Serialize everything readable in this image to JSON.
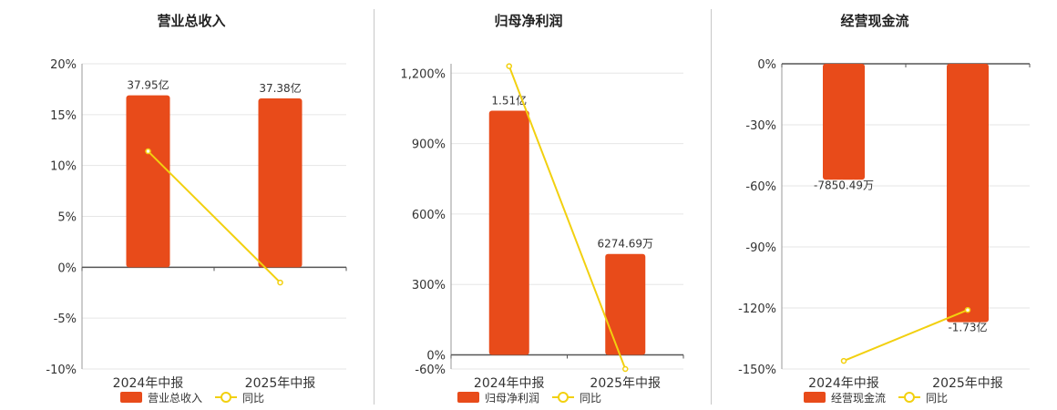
{
  "chart_data": [
    {
      "type": "bar",
      "title": "营业总收入",
      "categories": [
        "2024年中报",
        "2025年中报"
      ],
      "series": [
        {
          "name": "营业总收入",
          "values": [
            16.9,
            16.6
          ],
          "labels": [
            "37.95亿",
            "37.38亿"
          ]
        },
        {
          "name": "同比",
          "type": "line",
          "values": [
            11.4,
            -1.5
          ]
        }
      ],
      "yticks": [
        "20%",
        "15%",
        "10%",
        "5%",
        "0%",
        "-5%",
        "-10%"
      ],
      "ylim": [
        -10,
        20
      ],
      "grid": true,
      "legend": "bottom",
      "colors": {
        "bar": "#E84B1A",
        "line": "#F2D00F"
      }
    },
    {
      "type": "bar",
      "title": "归母净利润",
      "categories": [
        "2024年中报",
        "2025年中报"
      ],
      "series": [
        {
          "name": "归母净利润",
          "values": [
            1040,
            430
          ],
          "labels": [
            "1.51亿",
            "6274.69万"
          ]
        },
        {
          "name": "同比",
          "type": "line",
          "values": [
            1230,
            -60
          ]
        }
      ],
      "yticks": [
        "1,200%",
        "900%",
        "600%",
        "300%",
        "0%",
        "-60%"
      ],
      "ylim": [
        -60,
        1240
      ],
      "grid": true,
      "legend": "bottom",
      "colors": {
        "bar": "#E84B1A",
        "line": "#F2D00F"
      }
    },
    {
      "type": "bar",
      "title": "经营现金流",
      "categories": [
        "2024年中报",
        "2025年中报"
      ],
      "series": [
        {
          "name": "经营现金流",
          "values": [
            -57,
            -127
          ],
          "labels": [
            "-7850.49万",
            "-1.73亿"
          ]
        },
        {
          "name": "同比",
          "type": "line",
          "values": [
            -146,
            -121
          ]
        }
      ],
      "yticks": [
        "0%",
        "-30%",
        "-60%",
        "-90%",
        "-120%",
        "-150%"
      ],
      "ylim": [
        -150,
        0
      ],
      "grid": true,
      "legend": "bottom",
      "colors": {
        "bar": "#E84B1A",
        "line": "#F2D00F"
      }
    }
  ]
}
